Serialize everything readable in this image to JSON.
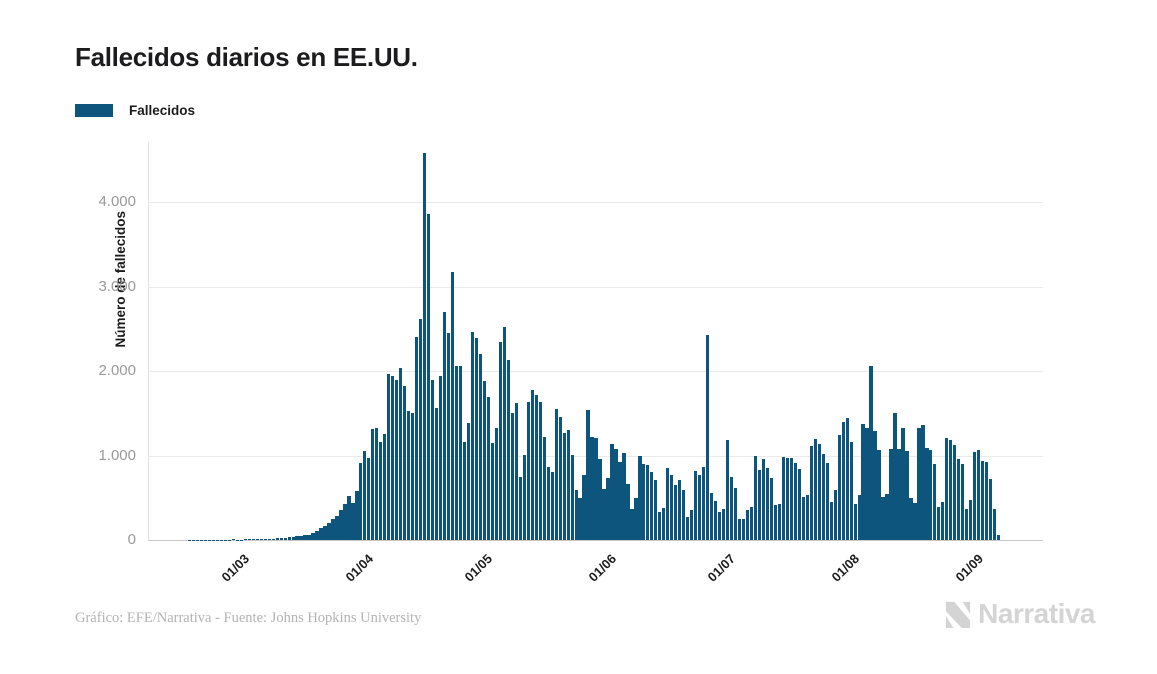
{
  "header": {
    "title": "Fallecidos diarios en EE.UU."
  },
  "legend": {
    "label": "Fallecidos",
    "swatch_color": "#0E557E"
  },
  "footer": {
    "credit": "Gráfico: EFE/Narrativa - Fuente: Johns Hopkins University",
    "brand": "Narrativa"
  },
  "colors": {
    "bar": "#0E557E",
    "title_text": "#1c1c1e",
    "y_tick_text": "#9a9a9a",
    "x_tick_text": "#1e1e1e",
    "gridline": "#eaeaea",
    "baseline": "#c8c8c8",
    "footer_text": "#b3b3b3",
    "brand_text": "#d4d4d4"
  },
  "chart_data": {
    "type": "bar",
    "title": "Fallecidos diarios en EE.UU.",
    "series_name": "Fallecidos",
    "xlabel": "",
    "ylabel": "Número de fallecidos",
    "ylim": [
      0,
      4700
    ],
    "grid": "horizontal",
    "legend_position": "top-left",
    "bar_color": "#0E557E",
    "y_tick_values": [
      0,
      1000,
      2000,
      3000,
      4000
    ],
    "y_tick_labels": [
      "0",
      "1.000",
      "2.000",
      "3.000",
      "4.000"
    ],
    "x_tick_labels": [
      "01/03",
      "01/04",
      "01/05",
      "01/06",
      "01/07",
      "01/08",
      "01/09"
    ],
    "x_tick_indices": [
      23,
      54,
      84,
      115,
      145,
      176,
      207
    ],
    "x_tick_rotation": -45,
    "values": [
      0,
      0,
      0,
      0,
      0,
      0,
      0,
      0,
      0,
      0,
      2,
      1,
      3,
      2,
      4,
      3,
      5,
      4,
      6,
      5,
      4,
      8,
      6,
      6,
      9,
      8,
      11,
      10,
      14,
      12,
      16,
      15,
      19,
      24,
      28,
      36,
      30,
      42,
      48,
      56,
      65,
      85,
      108,
      140,
      168,
      205,
      248,
      290,
      350,
      432,
      520,
      435,
      580,
      912,
      1049,
      968,
      1321,
      1331,
      1165,
      1255,
      1970,
      1943,
      1900,
      2035,
      1830,
      1528,
      1509,
      2408,
      2621,
      4591,
      3857,
      1891,
      1561,
      1940,
      2699,
      2458,
      3179,
      2065,
      2058,
      1157,
      1384,
      2470,
      2390,
      2201,
      1883,
      1691,
      1154,
      1324,
      2350,
      2528,
      2129,
      1510,
      1624,
      750,
      1008,
      1630,
      1772,
      1715,
      1635,
      1218,
      865,
      808,
      1552,
      1461,
      1263,
      1305,
      1003,
      592,
      500,
      774,
      1535,
      1223,
      1212,
      960,
      605,
      730,
      1134,
      1083,
      919,
      1031,
      669,
      373,
      497,
      995,
      906,
      891,
      802,
      709,
      330,
      380,
      851,
      767,
      652,
      712,
      588,
      267,
      358,
      823,
      766,
      868,
      2425,
      560,
      460,
      330,
      370,
      1190,
      748,
      613,
      252,
      254,
      358,
      397,
      993,
      829,
      964,
      849,
      731,
      416,
      429,
      981,
      976,
      969,
      908,
      845,
      514,
      534,
      1119,
      1195,
      1140,
      1019,
      909,
      446,
      598,
      1244,
      1403,
      1442,
      1157,
      424,
      532,
      1380,
      1323,
      2060,
      1290,
      1064,
      506,
      541,
      1076,
      1499,
      1076,
      1326,
      1050,
      497,
      443,
      1324,
      1357,
      1090,
      1068,
      903,
      391,
      449,
      1205,
      1184,
      1125,
      958,
      896,
      363,
      479,
      1046,
      1069,
      942,
      929,
      718,
      365,
      60
    ]
  }
}
